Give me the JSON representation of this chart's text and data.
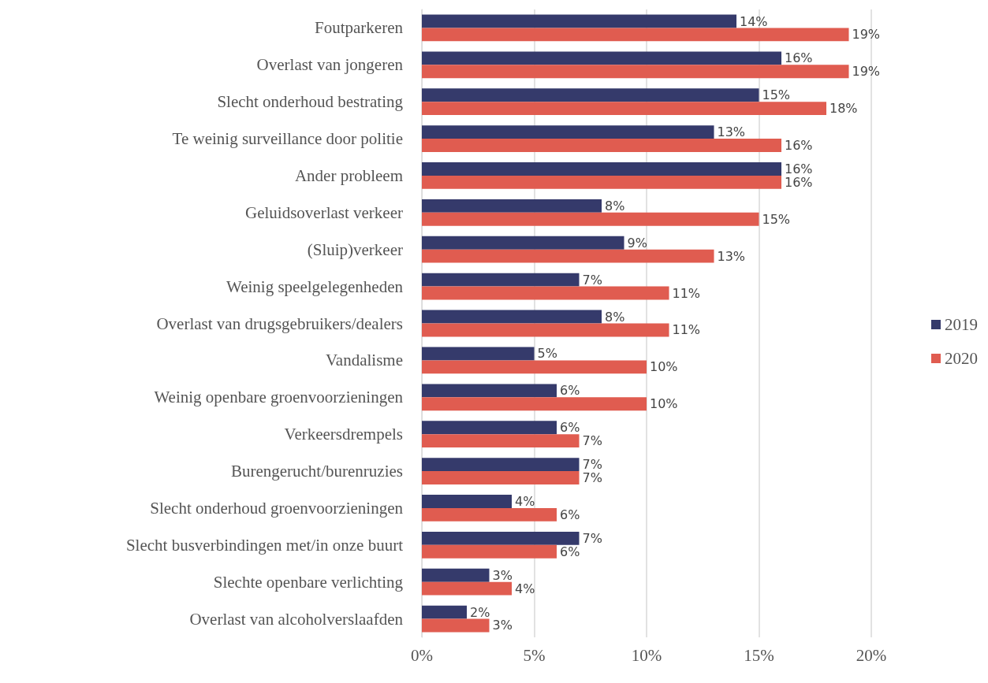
{
  "chart_data": {
    "type": "bar",
    "orientation": "horizontal",
    "categories": [
      "Foutparkeren",
      "Overlast van jongeren",
      "Slecht onderhoud bestrating",
      "Te weinig surveillance door politie",
      "Ander probleem",
      "Geluidsoverlast verkeer",
      "(Sluip)verkeer",
      "Weinig speelgelegenheden",
      "Overlast van drugsgebruikers/dealers",
      "Vandalisme",
      "Weinig openbare groenvoorzieningen",
      "Verkeersdrempels",
      "Burengerucht/burenruzies",
      "Slecht onderhoud groenvoorzieningen",
      "Slecht busverbindingen met/in onze buurt",
      "Slechte openbare verlichting",
      "Overlast van alcoholverslaafden"
    ],
    "series": [
      {
        "name": "2019",
        "color": "#353a6b",
        "values": [
          14,
          16,
          15,
          13,
          16,
          8,
          9,
          7,
          8,
          5,
          6,
          6,
          7,
          4,
          7,
          3,
          2
        ],
        "value_labels": [
          "14%",
          "16%",
          "15%",
          "13%",
          "16%",
          "8%",
          "9%",
          "7%",
          "8%",
          "5%",
          "6%",
          "6%",
          "7%",
          "4%",
          "7%",
          "3%",
          "2%"
        ]
      },
      {
        "name": "2020",
        "color": "#e05c50",
        "values": [
          19,
          19,
          18,
          16,
          16,
          15,
          13,
          11,
          11,
          10,
          10,
          7,
          7,
          6,
          6,
          4,
          3
        ],
        "value_labels": [
          "19%",
          "19%",
          "18%",
          "16%",
          "16%",
          "15%",
          "13%",
          "11%",
          "11%",
          "10%",
          "10%",
          "7%",
          "7%",
          "6%",
          "6%",
          "4%",
          "3%"
        ]
      }
    ],
    "xlim": [
      0,
      20
    ],
    "xticks": [
      {
        "value": 0,
        "label": "0%"
      },
      {
        "value": 5,
        "label": "5%"
      },
      {
        "value": 10,
        "label": "10%"
      },
      {
        "value": 15,
        "label": "15%"
      },
      {
        "value": 20,
        "label": "20%"
      }
    ],
    "grid": "x",
    "legend": "right"
  }
}
